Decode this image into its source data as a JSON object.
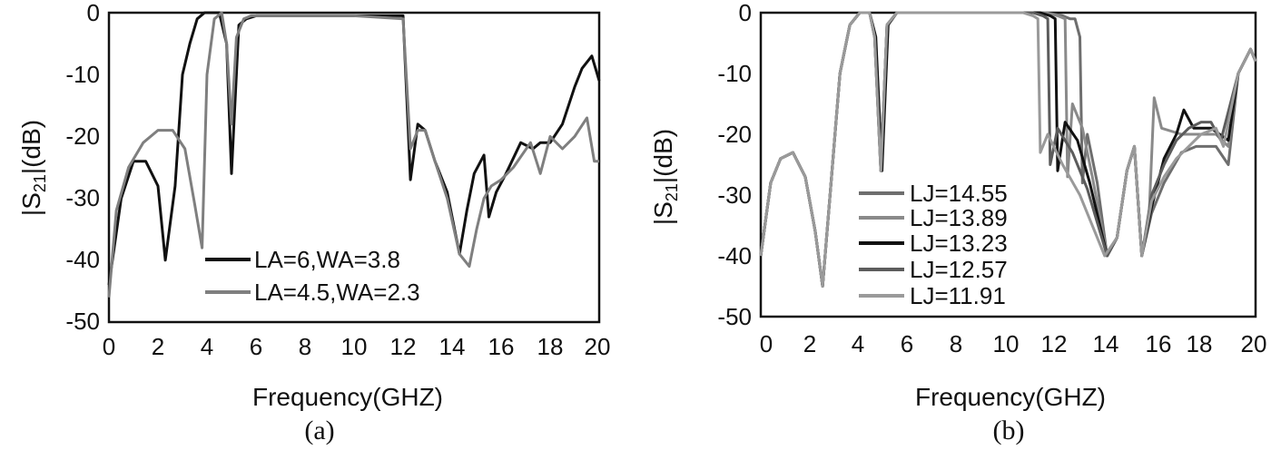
{
  "chart_data": [
    {
      "type": "line",
      "caption": "(a)",
      "xlabel": "Frequency(GHZ)",
      "ylabel": "|S21|(dB)",
      "xlim": [
        0,
        20
      ],
      "ylim": [
        -50,
        0
      ],
      "xticks": [
        "0",
        "2",
        "4",
        "6",
        "8",
        "10",
        "12",
        "14",
        "16",
        "18",
        "20"
      ],
      "yticks": [
        "0",
        "-10",
        "-20",
        "-30",
        "-40",
        "-50"
      ],
      "legend_position": "bottom-center",
      "series": [
        {
          "name": "LA=6,WA=3.8",
          "color": "#111111",
          "x": [
            0,
            0.5,
            1.0,
            1.5,
            2.0,
            2.3,
            2.7,
            3.0,
            3.3,
            3.6,
            3.9,
            4.0,
            4.2,
            4.5,
            4.8,
            5.0,
            5.3,
            5.6,
            6,
            8,
            10,
            12.0,
            12.3,
            12.6,
            12.9,
            13.3,
            13.8,
            14.3,
            14.6,
            14.9,
            15.3,
            15.5,
            15.8,
            16.2,
            16.8,
            17.3,
            17.6,
            18.0,
            18.5,
            19.0,
            19.3,
            19.7,
            20.0
          ],
          "y": [
            -44,
            -30,
            -24,
            -24,
            -28,
            -40,
            -28,
            -10,
            -5,
            -1,
            0,
            0,
            0,
            0,
            -5,
            -26,
            -2,
            -1,
            -0.5,
            -0.5,
            -0.5,
            -0.5,
            -27,
            -18,
            -19,
            -24,
            -29,
            -39,
            -32,
            -26,
            -23,
            -33,
            -29,
            -26,
            -21,
            -22,
            -21,
            -21,
            -18,
            -12,
            -9,
            -7,
            -11
          ]
        },
        {
          "name": "LA=4.5,WA=2.3",
          "color": "#7f7f7f",
          "x": [
            0,
            0.3,
            0.8,
            1.4,
            2.0,
            2.6,
            3.1,
            3.5,
            3.8,
            4.0,
            4.3,
            4.6,
            4.8,
            5.0,
            5.2,
            5.5,
            5.8,
            6,
            8,
            10,
            12.0,
            12.3,
            12.6,
            12.9,
            13.3,
            13.8,
            14.3,
            14.7,
            15.0,
            15.3,
            15.6,
            16.0,
            16.5,
            17.2,
            17.6,
            18.0,
            18.5,
            19.0,
            19.5,
            19.8,
            20.0
          ],
          "y": [
            -46,
            -32,
            -25,
            -21,
            -19,
            -19,
            -22,
            -31,
            -38,
            -10,
            -1,
            0,
            -5,
            -18,
            -4,
            -1,
            -0.5,
            -0.5,
            -0.5,
            -0.5,
            -1,
            -22,
            -19,
            -19,
            -24,
            -30,
            -39,
            -41,
            -35,
            -30,
            -28,
            -27,
            -25,
            -21,
            -26,
            -20,
            -22,
            -20,
            -17,
            -24,
            -24
          ]
        }
      ]
    },
    {
      "type": "line",
      "caption": "(b)",
      "xlabel": "Frequency(GHZ)",
      "ylabel": "|S21|(dB)",
      "xlim": [
        0,
        20
      ],
      "ylim": [
        -50,
        0
      ],
      "xticks": [
        "0",
        "2",
        "4",
        "6",
        "8",
        "10",
        "12",
        "14",
        "16",
        "18",
        "20"
      ],
      "yticks": [
        "0",
        "-10",
        "-20",
        "-30",
        "-40",
        "-50"
      ],
      "legend_position": "bottom-left",
      "series": [
        {
          "name": "LJ=14.55",
          "color": "#6e6e6e",
          "x": [
            0,
            0.4,
            0.8,
            1.3,
            1.8,
            2.2,
            2.5,
            2.8,
            3.2,
            3.6,
            4.0,
            4.4,
            4.6,
            4.85,
            5.1,
            5.5,
            6,
            8,
            10,
            11.5,
            12.2,
            12.5,
            12.7,
            12.9,
            13.0,
            13.2,
            13.6,
            14.0,
            14.4,
            14.8,
            15.1,
            15.4,
            15.8,
            16.3,
            17.0,
            17.6,
            18.4,
            18.9,
            19.3,
            19.8,
            20.0
          ],
          "y": [
            -40,
            -28,
            -24,
            -23,
            -27,
            -36,
            -45,
            -30,
            -10,
            -2,
            0,
            0,
            -4,
            -26,
            -2,
            0,
            0,
            0,
            0,
            0,
            -0.5,
            -1,
            -1,
            -4,
            -28,
            -20,
            -28,
            -40,
            -37,
            -26,
            -22,
            -40,
            -33,
            -28,
            -23,
            -22,
            -22,
            -25,
            -10,
            -6,
            -8
          ]
        },
        {
          "name": "LJ=13.89",
          "color": "#8a8a8a",
          "x": [
            0,
            0.4,
            0.8,
            1.3,
            1.8,
            2.2,
            2.5,
            2.8,
            3.2,
            3.6,
            4.0,
            4.4,
            4.6,
            4.85,
            5.1,
            5.5,
            6,
            8,
            10,
            11.5,
            12.0,
            12.3,
            12.4,
            12.6,
            13.0,
            13.4,
            14.0,
            14.4,
            14.8,
            15.1,
            15.4,
            15.7,
            15.9,
            16.2,
            17.0,
            17.6,
            18.4,
            18.9,
            19.3,
            19.8,
            20.0
          ],
          "y": [
            -40,
            -28,
            -24,
            -23,
            -27,
            -36,
            -45,
            -30,
            -10,
            -2,
            0,
            0,
            -4,
            -26,
            -2,
            0,
            0,
            0,
            0,
            0,
            -0.5,
            -1,
            -27,
            -15,
            -19,
            -27,
            -40,
            -37,
            -26,
            -22,
            -40,
            -33,
            -14,
            -19,
            -20,
            -20,
            -20,
            -22,
            -10,
            -6,
            -8
          ]
        },
        {
          "name": "LJ=13.23",
          "color": "#111111",
          "x": [
            0,
            0.4,
            0.8,
            1.3,
            1.8,
            2.2,
            2.5,
            2.8,
            3.2,
            3.6,
            4.0,
            4.4,
            4.65,
            4.9,
            5.15,
            5.5,
            6,
            8,
            10,
            11.3,
            11.7,
            11.9,
            12.0,
            12.3,
            12.8,
            13.3,
            14.0,
            14.4,
            14.8,
            15.1,
            15.4,
            15.8,
            16.3,
            16.8,
            17.1,
            17.5,
            18.2,
            18.9,
            19.3,
            19.8,
            20.0
          ],
          "y": [
            -40,
            -28,
            -24,
            -23,
            -27,
            -36,
            -45,
            -30,
            -10,
            -2,
            0,
            0,
            -4,
            -26,
            -2,
            0,
            0,
            0,
            0,
            0,
            -0.5,
            -1,
            -26,
            -18,
            -21,
            -28,
            -40,
            -37,
            -26,
            -22,
            -40,
            -32,
            -24,
            -20,
            -16,
            -19,
            -19,
            -21,
            -10,
            -6,
            -8
          ]
        },
        {
          "name": "LJ=12.57",
          "color": "#5c5c5c",
          "x": [
            0,
            0.4,
            0.8,
            1.3,
            1.8,
            2.2,
            2.5,
            2.8,
            3.2,
            3.6,
            4.0,
            4.4,
            4.6,
            4.85,
            5.1,
            5.5,
            6,
            8,
            10,
            11.0,
            11.4,
            11.6,
            11.7,
            12.0,
            12.6,
            13.2,
            14.0,
            14.4,
            14.8,
            15.1,
            15.4,
            15.8,
            16.3,
            16.8,
            17.3,
            17.8,
            18.2,
            18.6,
            19.3,
            19.8,
            20.0
          ],
          "y": [
            -40,
            -28,
            -24,
            -23,
            -27,
            -36,
            -45,
            -30,
            -10,
            -2,
            0,
            0,
            -4,
            -26,
            -2,
            0,
            0,
            0,
            0,
            0,
            -0.5,
            -1,
            -25,
            -19,
            -23,
            -29,
            -40,
            -37,
            -26,
            -22,
            -40,
            -30,
            -25,
            -21,
            -19,
            -18,
            -18,
            -21,
            -10,
            -6,
            -8
          ]
        },
        {
          "name": "LJ=11.91",
          "color": "#9a9a9a",
          "x": [
            0,
            0.4,
            0.8,
            1.3,
            1.8,
            2.2,
            2.5,
            2.8,
            3.2,
            3.6,
            4.0,
            4.4,
            4.6,
            4.85,
            5.1,
            5.5,
            6,
            8,
            10,
            10.6,
            11.0,
            11.2,
            11.3,
            11.6,
            12.2,
            12.9,
            13.9,
            14.4,
            14.8,
            15.1,
            15.4,
            15.8,
            16.3,
            16.8,
            17.3,
            17.8,
            18.4,
            18.7,
            19.3,
            19.8,
            20.0
          ],
          "y": [
            -40,
            -28,
            -24,
            -23,
            -27,
            -36,
            -45,
            -30,
            -10,
            -2,
            0,
            0,
            -4,
            -26,
            -2,
            0,
            0,
            0,
            0,
            0,
            -0.5,
            -1,
            -23,
            -20,
            -25,
            -30,
            -40,
            -37,
            -26,
            -22,
            -40,
            -31,
            -27,
            -24,
            -22,
            -20,
            -19,
            -22,
            -10,
            -6,
            -8
          ]
        }
      ]
    }
  ]
}
